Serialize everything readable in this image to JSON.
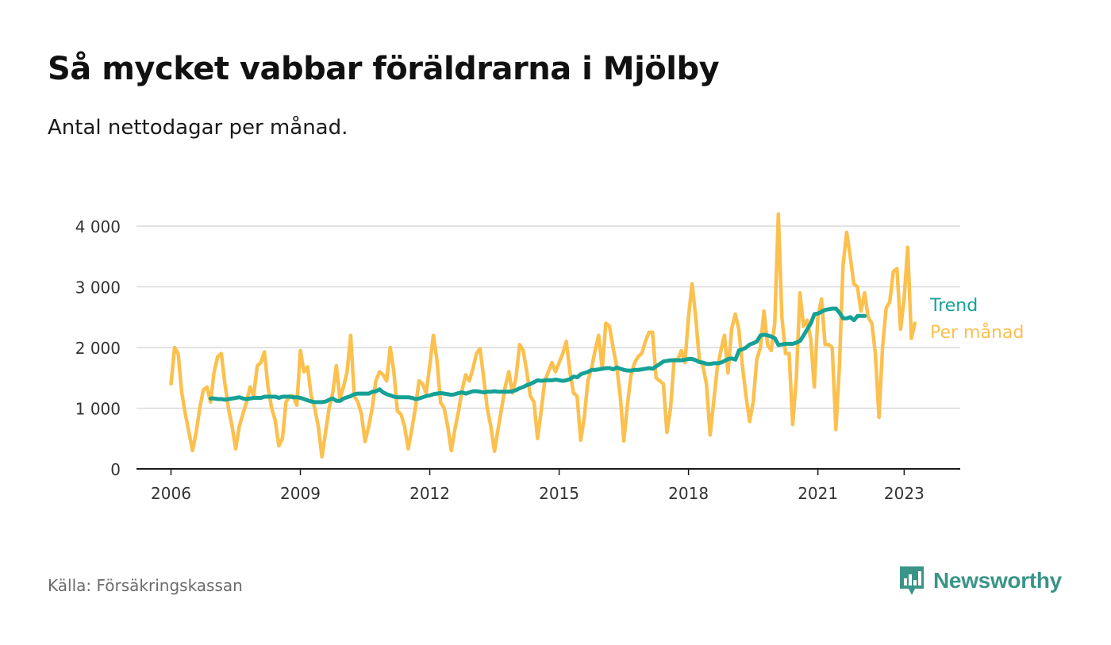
{
  "title": "Så mycket vabbar föräldrarna i Mjölby",
  "subtitle": "Antal nettodagar per månad.",
  "source": "Källa: Försäkringskassan",
  "brand": {
    "name": "Newsworthy",
    "icon": "newsworthy-logo-icon",
    "color": "#3a9488"
  },
  "chart_data": {
    "type": "line",
    "title": "Så mycket vabbar föräldrarna i Mjölby",
    "subtitle": "Antal nettodagar per månad.",
    "xlabel": "",
    "ylabel": "",
    "xlim": [
      2005.2,
      2024.3
    ],
    "ylim": [
      0,
      4000
    ],
    "grid": true,
    "legend": "right-end-labels",
    "x_ticks": [
      {
        "value": 2006,
        "label": "2006"
      },
      {
        "value": 2009,
        "label": "2009"
      },
      {
        "value": 2012,
        "label": "2012"
      },
      {
        "value": 2015,
        "label": "2015"
      },
      {
        "value": 2018,
        "label": "2018"
      },
      {
        "value": 2021,
        "label": "2021"
      },
      {
        "value": 2023,
        "label": "2023"
      }
    ],
    "y_ticks": [
      {
        "value": 0,
        "label": "0"
      },
      {
        "value": 1000,
        "label": "1 000"
      },
      {
        "value": 2000,
        "label": "2 000"
      },
      {
        "value": 3000,
        "label": "3 000"
      },
      {
        "value": 4000,
        "label": "4 000"
      }
    ],
    "series": [
      {
        "name": "Per månad",
        "color": "#fbc04e",
        "x_start": 2006.0,
        "x_step": 0.08333,
        "values": [
          1400,
          2000,
          1900,
          1250,
          900,
          600,
          300,
          600,
          1000,
          1300,
          1350,
          1100,
          1600,
          1850,
          1900,
          1400,
          1000,
          700,
          330,
          700,
          900,
          1100,
          1350,
          1200,
          1700,
          1750,
          1930,
          1350,
          1000,
          800,
          380,
          500,
          1100,
          1200,
          1200,
          1050,
          1950,
          1600,
          1680,
          1200,
          1000,
          700,
          200,
          600,
          1000,
          1250,
          1700,
          1150,
          1350,
          1600,
          2200,
          1200,
          1100,
          900,
          450,
          700,
          1000,
          1450,
          1600,
          1550,
          1450,
          2000,
          1600,
          950,
          900,
          700,
          330,
          650,
          1000,
          1450,
          1400,
          1250,
          1700,
          2200,
          1800,
          1100,
          1000,
          700,
          300,
          650,
          950,
          1300,
          1550,
          1450,
          1650,
          1900,
          1980,
          1500,
          1000,
          700,
          290,
          650,
          1000,
          1350,
          1600,
          1250,
          1500,
          2050,
          1950,
          1600,
          1200,
          1100,
          500,
          950,
          1450,
          1600,
          1750,
          1600,
          1750,
          1900,
          2100,
          1600,
          1250,
          1200,
          470,
          850,
          1450,
          1650,
          1950,
          2200,
          1650,
          2400,
          2350,
          2000,
          1700,
          1200,
          460,
          1050,
          1550,
          1750,
          1850,
          1900,
          2100,
          2250,
          2250,
          1500,
          1450,
          1400,
          600,
          1000,
          1800,
          1800,
          1950,
          1750,
          2500,
          3050,
          2500,
          1800,
          1700,
          1400,
          560,
          1100,
          1650,
          1950,
          2200,
          1580,
          2300,
          2550,
          2300,
          1700,
          1200,
          780,
          1100,
          1800,
          2000,
          2600,
          2050,
          1950,
          2400,
          4200,
          2500,
          1900,
          1900,
          730,
          1500,
          2900,
          2350,
          2450,
          2150,
          1350,
          2500,
          2800,
          2050,
          2050,
          2000,
          650,
          1700,
          3350,
          3900,
          3500,
          3050,
          3000,
          2600,
          2900,
          2500,
          2400,
          1900,
          850,
          2000,
          2650,
          2750,
          3250,
          3300,
          2300,
          2800,
          3650,
          2150,
          2400
        ]
      },
      {
        "name": "Trend",
        "color": "#16a196",
        "x_start": 2006.92,
        "x_step": 0.08333,
        "values": [
          1160,
          1160,
          1150,
          1150,
          1140,
          1150,
          1160,
          1170,
          1180,
          1160,
          1150,
          1160,
          1170,
          1170,
          1170,
          1190,
          1190,
          1190,
          1190,
          1170,
          1190,
          1190,
          1190,
          1180,
          1180,
          1170,
          1150,
          1130,
          1110,
          1100,
          1100,
          1100,
          1110,
          1140,
          1160,
          1120,
          1120,
          1160,
          1180,
          1200,
          1230,
          1240,
          1240,
          1240,
          1240,
          1270,
          1280,
          1310,
          1260,
          1230,
          1210,
          1190,
          1180,
          1180,
          1180,
          1180,
          1170,
          1150,
          1160,
          1180,
          1200,
          1210,
          1230,
          1240,
          1250,
          1240,
          1230,
          1220,
          1230,
          1250,
          1260,
          1240,
          1260,
          1280,
          1280,
          1270,
          1260,
          1270,
          1270,
          1280,
          1270,
          1270,
          1270,
          1270,
          1280,
          1300,
          1330,
          1350,
          1380,
          1400,
          1430,
          1460,
          1450,
          1460,
          1460,
          1460,
          1470,
          1460,
          1450,
          1460,
          1480,
          1520,
          1510,
          1560,
          1580,
          1600,
          1630,
          1630,
          1640,
          1650,
          1660,
          1660,
          1640,
          1670,
          1650,
          1630,
          1620,
          1620,
          1630,
          1630,
          1640,
          1650,
          1660,
          1650,
          1690,
          1730,
          1770,
          1780,
          1790,
          1790,
          1790,
          1790,
          1800,
          1810,
          1810,
          1790,
          1760,
          1750,
          1730,
          1730,
          1740,
          1740,
          1750,
          1780,
          1810,
          1820,
          1800,
          1950,
          1970,
          2000,
          2050,
          2070,
          2100,
          2200,
          2210,
          2200,
          2180,
          2150,
          2040,
          2050,
          2060,
          2060,
          2060,
          2080,
          2110,
          2200,
          2300,
          2400,
          2550,
          2560,
          2590,
          2620,
          2630,
          2640,
          2640,
          2570,
          2480,
          2480,
          2500,
          2450,
          2520,
          2520,
          2520
        ]
      }
    ]
  }
}
